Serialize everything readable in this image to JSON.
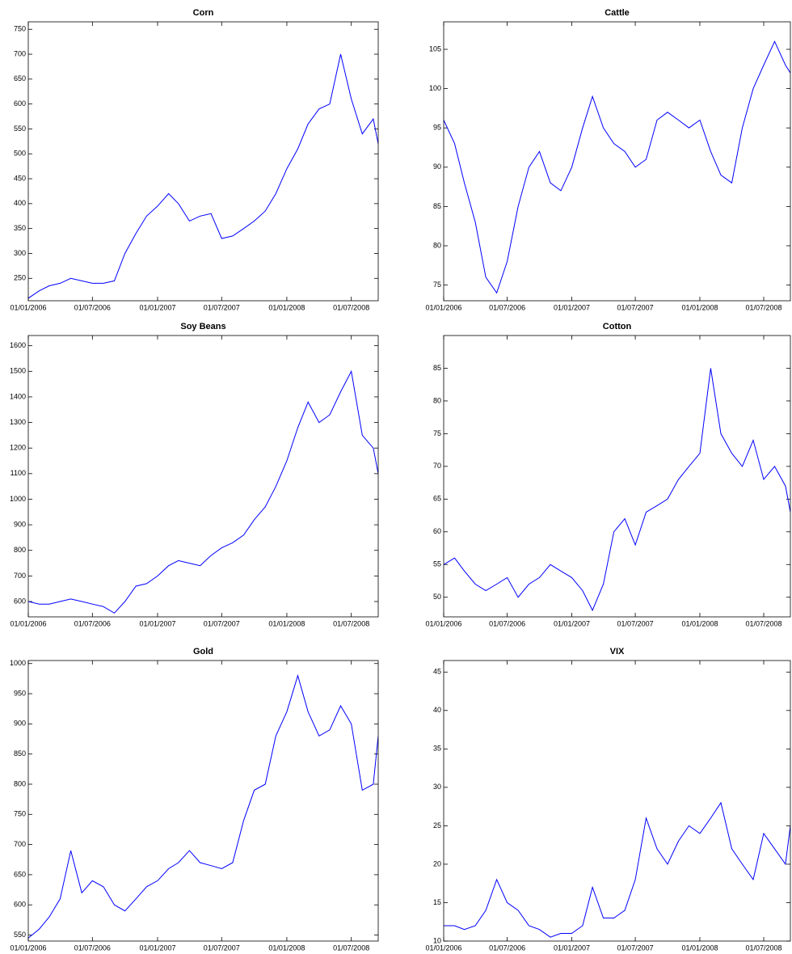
{
  "chart_data": [
    {
      "type": "line",
      "title": "Corn",
      "x": [
        "01/01/2006",
        "01/02/2006",
        "01/03/2006",
        "01/04/2006",
        "01/05/2006",
        "01/06/2006",
        "01/07/2006",
        "01/08/2006",
        "01/09/2006",
        "01/10/2006",
        "01/11/2006",
        "01/12/2006",
        "01/01/2007",
        "01/02/2007",
        "01/03/2007",
        "01/04/2007",
        "01/05/2007",
        "01/06/2007",
        "01/07/2007",
        "01/08/2007",
        "01/09/2007",
        "01/10/2007",
        "01/11/2007",
        "01/12/2007",
        "01/01/2008",
        "01/02/2008",
        "01/03/2008",
        "01/04/2008",
        "01/05/2008",
        "01/06/2008",
        "01/07/2008",
        "01/08/2008",
        "01/09/2008",
        "15/09/2008"
      ],
      "series": [
        {
          "color": "#0000ff",
          "values": [
            210,
            225,
            235,
            240,
            250,
            245,
            240,
            240,
            245,
            300,
            340,
            375,
            395,
            420,
            400,
            365,
            375,
            380,
            330,
            335,
            350,
            365,
            385,
            420,
            470,
            510,
            560,
            590,
            600,
            700,
            610,
            540,
            570,
            520
          ]
        }
      ],
      "xlim": [
        "01/01/2006",
        "15/09/2008"
      ],
      "xticks": [
        "01/01/2006",
        "01/07/2006",
        "01/01/2007",
        "01/07/2007",
        "01/01/2008",
        "01/07/2008"
      ],
      "ylim": [
        205,
        765
      ],
      "yticks": [
        250,
        300,
        350,
        400,
        450,
        500,
        550,
        600,
        650,
        700,
        750
      ]
    },
    {
      "type": "line",
      "title": "Cattle",
      "x": [
        "01/01/2006",
        "01/02/2006",
        "01/03/2006",
        "01/04/2006",
        "01/05/2006",
        "01/06/2006",
        "01/07/2006",
        "01/08/2006",
        "01/09/2006",
        "01/10/2006",
        "01/11/2006",
        "01/12/2006",
        "01/01/2007",
        "01/02/2007",
        "01/03/2007",
        "01/04/2007",
        "01/05/2007",
        "01/06/2007",
        "01/07/2007",
        "01/08/2007",
        "01/09/2007",
        "01/10/2007",
        "01/11/2007",
        "01/12/2007",
        "01/01/2008",
        "01/02/2008",
        "01/03/2008",
        "01/04/2008",
        "01/05/2008",
        "01/06/2008",
        "01/07/2008",
        "01/08/2008",
        "01/09/2008",
        "15/09/2008"
      ],
      "series": [
        {
          "color": "#0000ff",
          "values": [
            96,
            93,
            88,
            83,
            76,
            74,
            78,
            85,
            90,
            92,
            88,
            87,
            90,
            95,
            99,
            95,
            93,
            92,
            90,
            91,
            96,
            97,
            96,
            95,
            96,
            92,
            89,
            88,
            95,
            100,
            103,
            106,
            103,
            102
          ]
        }
      ],
      "xlim": [
        "01/01/2006",
        "15/09/2008"
      ],
      "xticks": [
        "01/01/2006",
        "01/07/2006",
        "01/01/2007",
        "01/07/2007",
        "01/01/2008",
        "01/07/2008"
      ],
      "ylim": [
        73,
        108.5
      ],
      "yticks": [
        75,
        80,
        85,
        90,
        95,
        100,
        105
      ]
    },
    {
      "type": "line",
      "title": "Soy Beans",
      "x": [
        "01/01/2006",
        "01/02/2006",
        "01/03/2006",
        "01/04/2006",
        "01/05/2006",
        "01/06/2006",
        "01/07/2006",
        "01/08/2006",
        "01/09/2006",
        "01/10/2006",
        "01/11/2006",
        "01/12/2006",
        "01/01/2007",
        "01/02/2007",
        "01/03/2007",
        "01/04/2007",
        "01/05/2007",
        "01/06/2007",
        "01/07/2007",
        "01/08/2007",
        "01/09/2007",
        "01/10/2007",
        "01/11/2007",
        "01/12/2007",
        "01/01/2008",
        "01/02/2008",
        "01/03/2008",
        "01/04/2008",
        "01/05/2008",
        "01/06/2008",
        "01/07/2008",
        "01/08/2008",
        "01/09/2008",
        "15/09/2008"
      ],
      "series": [
        {
          "color": "#0000ff",
          "values": [
            600,
            590,
            590,
            600,
            610,
            600,
            590,
            580,
            555,
            600,
            660,
            670,
            700,
            740,
            760,
            750,
            740,
            780,
            810,
            830,
            860,
            920,
            970,
            1050,
            1150,
            1280,
            1380,
            1300,
            1330,
            1420,
            1500,
            1250,
            1200,
            1100
          ]
        }
      ],
      "xlim": [
        "01/01/2006",
        "15/09/2008"
      ],
      "xticks": [
        "01/01/2006",
        "01/07/2006",
        "01/01/2007",
        "01/07/2007",
        "01/01/2008",
        "01/07/2008"
      ],
      "ylim": [
        540,
        1640
      ],
      "yticks": [
        600,
        700,
        800,
        900,
        1000,
        1100,
        1200,
        1300,
        1400,
        1500,
        1600
      ]
    },
    {
      "type": "line",
      "title": "Cotton",
      "x": [
        "01/01/2006",
        "01/02/2006",
        "01/03/2006",
        "01/04/2006",
        "01/05/2006",
        "01/06/2006",
        "01/07/2006",
        "01/08/2006",
        "01/09/2006",
        "01/10/2006",
        "01/11/2006",
        "01/12/2006",
        "01/01/2007",
        "01/02/2007",
        "01/03/2007",
        "01/04/2007",
        "01/05/2007",
        "01/06/2007",
        "01/07/2007",
        "01/08/2007",
        "01/09/2007",
        "01/10/2007",
        "01/11/2007",
        "01/12/2007",
        "01/01/2008",
        "01/02/2008",
        "01/03/2008",
        "01/04/2008",
        "01/05/2008",
        "01/06/2008",
        "01/07/2008",
        "01/08/2008",
        "01/09/2008",
        "15/09/2008"
      ],
      "series": [
        {
          "color": "#0000ff",
          "values": [
            55,
            56,
            54,
            52,
            51,
            52,
            53,
            50,
            52,
            53,
            55,
            54,
            53,
            51,
            48,
            52,
            60,
            62,
            58,
            63,
            64,
            65,
            68,
            70,
            72,
            85,
            75,
            72,
            70,
            74,
            68,
            70,
            67,
            63
          ]
        }
      ],
      "xlim": [
        "01/01/2006",
        "15/09/2008"
      ],
      "xticks": [
        "01/01/2006",
        "01/07/2006",
        "01/01/2007",
        "01/07/2007",
        "01/01/2008",
        "01/07/2008"
      ],
      "ylim": [
        47,
        90
      ],
      "yticks": [
        50,
        55,
        60,
        65,
        70,
        75,
        80,
        85
      ]
    },
    {
      "type": "line",
      "title": "Gold",
      "x": [
        "01/01/2006",
        "01/02/2006",
        "01/03/2006",
        "01/04/2006",
        "01/05/2006",
        "01/06/2006",
        "01/07/2006",
        "01/08/2006",
        "01/09/2006",
        "01/10/2006",
        "01/11/2006",
        "01/12/2006",
        "01/01/2007",
        "01/02/2007",
        "01/03/2007",
        "01/04/2007",
        "01/05/2007",
        "01/06/2007",
        "01/07/2007",
        "01/08/2007",
        "01/09/2007",
        "01/10/2007",
        "01/11/2007",
        "01/12/2007",
        "01/01/2008",
        "01/02/2008",
        "01/03/2008",
        "01/04/2008",
        "01/05/2008",
        "01/06/2008",
        "01/07/2008",
        "01/08/2008",
        "01/09/2008",
        "15/09/2008"
      ],
      "series": [
        {
          "color": "#0000ff",
          "values": [
            545,
            560,
            580,
            610,
            690,
            620,
            640,
            630,
            600,
            590,
            610,
            630,
            640,
            660,
            670,
            690,
            670,
            665,
            660,
            670,
            740,
            790,
            800,
            880,
            920,
            980,
            920,
            880,
            890,
            930,
            900,
            790,
            800,
            880
          ]
        }
      ],
      "xlim": [
        "01/01/2006",
        "15/09/2008"
      ],
      "xticks": [
        "01/01/2006",
        "01/07/2006",
        "01/01/2007",
        "01/07/2007",
        "01/01/2008",
        "01/07/2008"
      ],
      "ylim": [
        540,
        1005
      ],
      "yticks": [
        550,
        600,
        650,
        700,
        750,
        800,
        850,
        900,
        950,
        1000
      ]
    },
    {
      "type": "line",
      "title": "VIX",
      "x": [
        "01/01/2006",
        "01/02/2006",
        "01/03/2006",
        "01/04/2006",
        "01/05/2006",
        "01/06/2006",
        "01/07/2006",
        "01/08/2006",
        "01/09/2006",
        "01/10/2006",
        "01/11/2006",
        "01/12/2006",
        "01/01/2007",
        "01/02/2007",
        "01/03/2007",
        "01/04/2007",
        "01/05/2007",
        "01/06/2007",
        "01/07/2007",
        "01/08/2007",
        "01/09/2007",
        "01/10/2007",
        "01/11/2007",
        "01/12/2007",
        "01/01/2008",
        "01/02/2008",
        "01/03/2008",
        "01/04/2008",
        "01/05/2008",
        "01/06/2008",
        "01/07/2008",
        "01/08/2008",
        "01/09/2008",
        "15/09/2008"
      ],
      "series": [
        {
          "color": "#0000ff",
          "values": [
            12,
            12,
            11.5,
            12,
            14,
            18,
            15,
            14,
            12,
            11.5,
            10.5,
            11,
            11,
            12,
            17,
            13,
            13,
            14,
            18,
            26,
            22,
            20,
            23,
            25,
            24,
            26,
            28,
            22,
            20,
            18,
            24,
            22,
            20,
            25
          ]
        }
      ],
      "xlim": [
        "01/01/2006",
        "15/09/2008"
      ],
      "xticks": [
        "01/01/2006",
        "01/07/2006",
        "01/01/2007",
        "01/07/2007",
        "01/01/2008",
        "01/07/2008"
      ],
      "ylim": [
        10,
        46.5
      ],
      "yticks": [
        10,
        15,
        20,
        25,
        30,
        35,
        40,
        45
      ]
    }
  ]
}
